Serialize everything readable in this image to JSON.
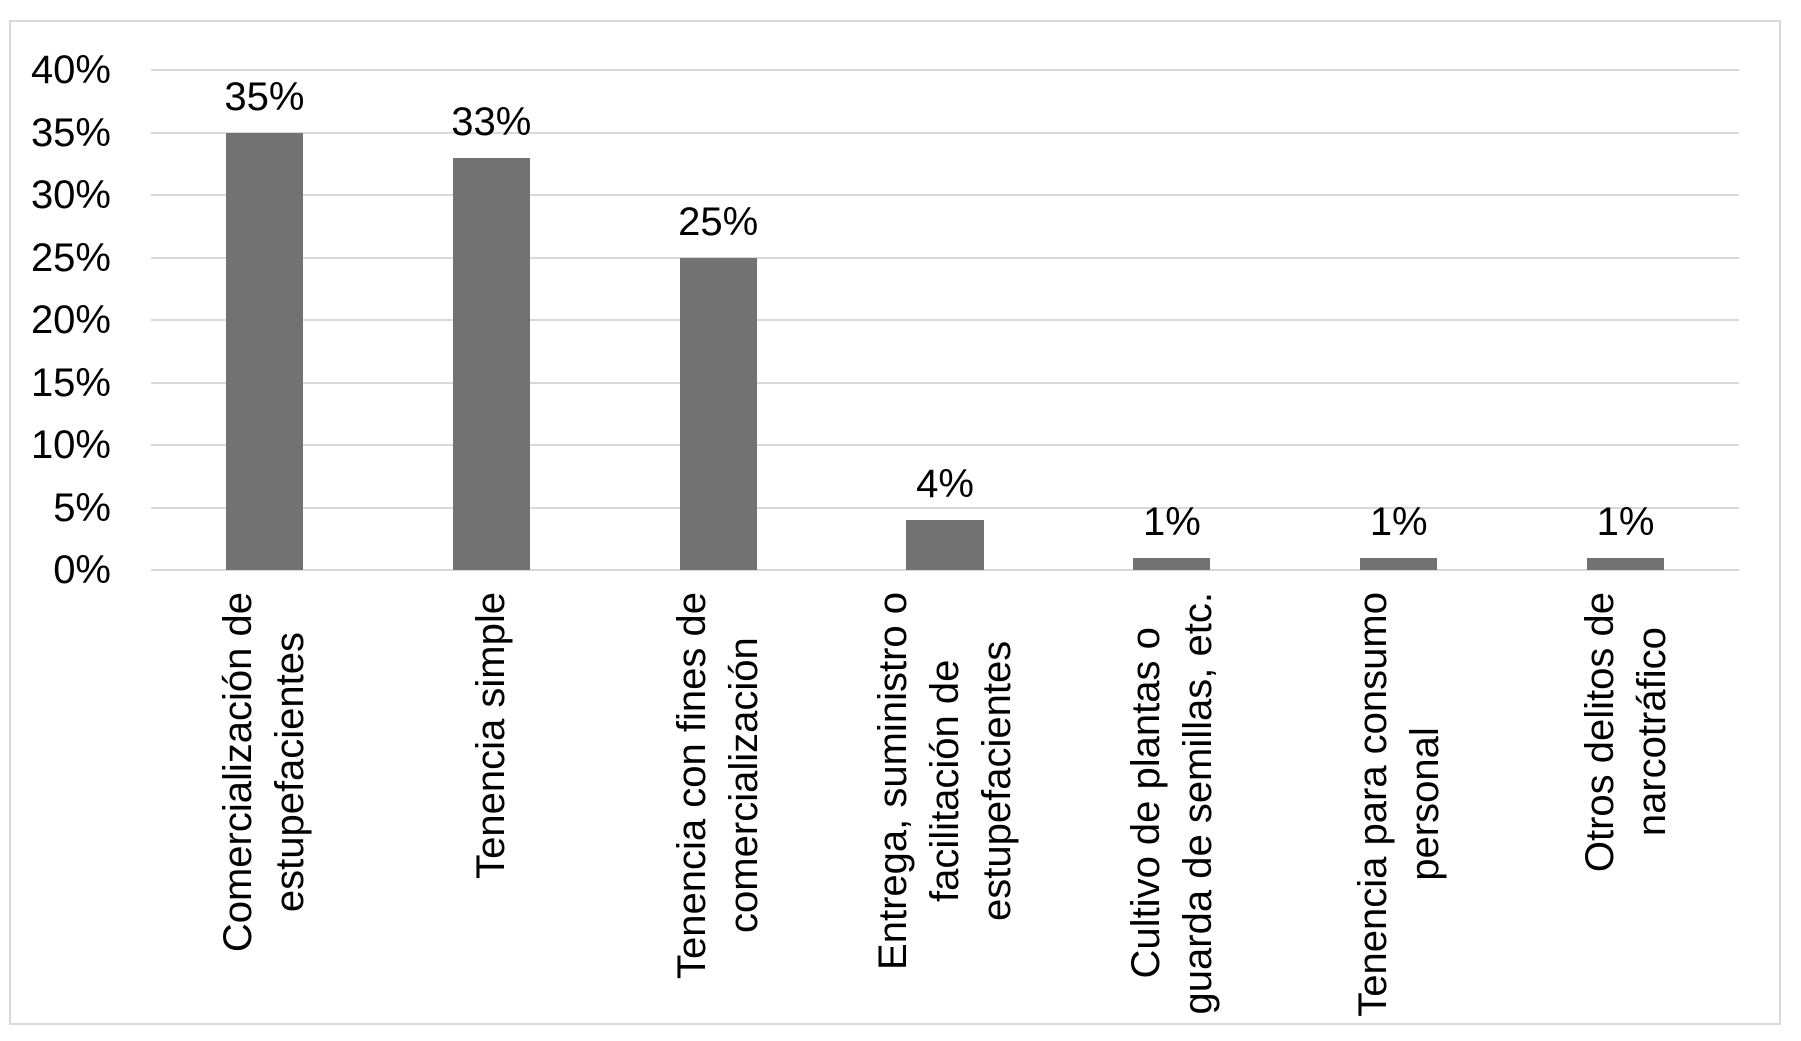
{
  "chart_data": {
    "type": "bar",
    "title": "",
    "xlabel": "",
    "ylabel": "",
    "categories": [
      "Comercialización de estupefacientes",
      "Tenencia simple",
      "Tenencia con fines de comercialización",
      "Entrega, suministro o facilitación de estupefacientes",
      "Cultivo de plantas o guarda de semillas, etc.",
      "Tenencia para consumo personal",
      "Otros delitos de narcotráfico"
    ],
    "category_lines": [
      [
        "Comercialización de",
        "estupefacientes"
      ],
      [
        "Tenencia simple"
      ],
      [
        "Tenencia con fines de",
        "comercialización"
      ],
      [
        "Entrega, suministro o",
        "facilitación de",
        "estupefacientes"
      ],
      [
        "Cultivo de plantas o",
        "guarda de semillas, etc."
      ],
      [
        "Tenencia para consumo",
        "personal"
      ],
      [
        "Otros delitos de",
        "narcotráfico"
      ]
    ],
    "values": [
      35,
      33,
      25,
      4,
      1,
      1,
      1
    ],
    "data_labels": [
      "35%",
      "33%",
      "25%",
      "4%",
      "1%",
      "1%",
      "1%"
    ],
    "y_axis": {
      "min": 0,
      "max": 40,
      "step": 5,
      "ticks": [
        "40%",
        "35%",
        "30%",
        "25%",
        "20%",
        "15%",
        "10%",
        "5%",
        "0%"
      ],
      "tick_values": [
        40,
        35,
        30,
        25,
        20,
        15,
        10,
        5,
        0
      ]
    },
    "grid": true,
    "legend": "none",
    "colors": {
      "bar": "#727272",
      "gridline": "#D9D9D9",
      "border": "#D9D9D9",
      "text": "#000000",
      "background": "#FFFFFF"
    }
  }
}
